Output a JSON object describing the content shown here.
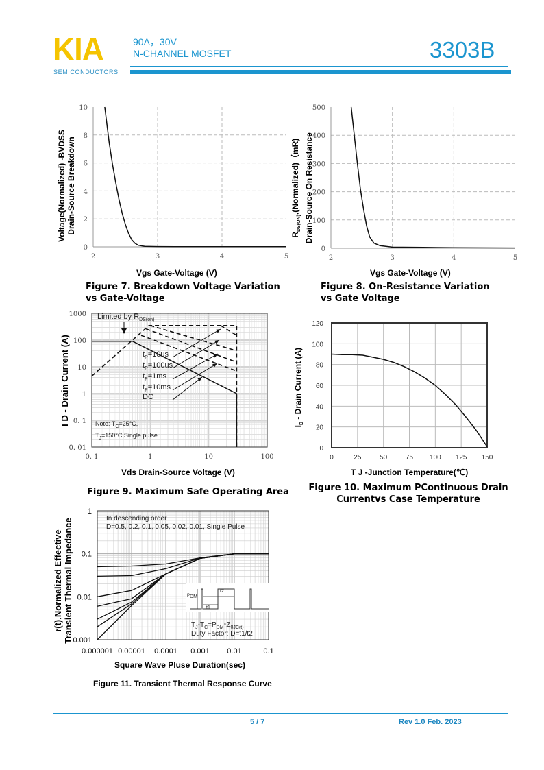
{
  "header": {
    "logo": "KIA",
    "logo_sub": "SEMICONDUCTORS",
    "rating": "90A，30V",
    "type": "N-CHANNEL MOSFET",
    "part_number": "3303B",
    "accent_color": "#1b95cf",
    "logo_color": "#f5c400"
  },
  "footer": {
    "page": "5 / 7",
    "revision": "Rev 1.0 Feb. 2023"
  },
  "chart_data": [
    {
      "type": "line",
      "caption": [
        "Figure 7.   Breakdown Voltage Variation",
        "vs Gate-Voltage"
      ],
      "xlabel": "Vgs Gate-Voltage (V)",
      "ylabel": [
        "Voltage(Normalized) -BVDSS",
        "Drain-Source Breakdown"
      ],
      "xscale": "linear",
      "yscale": "linear",
      "xlim": [
        2,
        5
      ],
      "ylim": [
        0,
        10
      ],
      "xticks": [
        2,
        3,
        4,
        5
      ],
      "yticks": [
        0,
        2,
        4,
        6,
        8,
        10
      ],
      "grid": "dashed",
      "series": [
        {
          "x": [
            2.18,
            2.25,
            2.3,
            2.35,
            2.4,
            2.45,
            2.5,
            2.55,
            2.6,
            2.65,
            2.7,
            2.8,
            3,
            3.5,
            4,
            5
          ],
          "y": [
            10,
            7.4,
            5.9,
            4.6,
            3.4,
            2.4,
            1.6,
            0.95,
            0.5,
            0.25,
            0.12,
            0.04,
            0.02,
            0.01,
            0.01,
            0.01
          ]
        }
      ]
    },
    {
      "type": "line",
      "caption": [
        "Figure 8. On-Resistance Variation",
        "vs Gate Voltage"
      ],
      "xlabel": "Vgs Gate-Voltage (V)",
      "ylabel": {
        "r": "R",
        "sub": "DS(ON)",
        "rest": ",(Normalized)（mR)",
        "line2": "Drain-Source On Resistance"
      },
      "xscale": "linear",
      "yscale": "linear",
      "xlim": [
        2,
        5
      ],
      "ylim": [
        0,
        500
      ],
      "xticks": [
        2,
        3,
        4,
        5
      ],
      "yticks": [
        0,
        100,
        200,
        300,
        400,
        500
      ],
      "grid": "dashed",
      "series": [
        {
          "x": [
            2.33,
            2.38,
            2.43,
            2.48,
            2.53,
            2.58,
            2.63,
            2.7,
            2.8,
            3,
            3.5,
            4,
            5
          ],
          "y": [
            500,
            400,
            300,
            210,
            140,
            80,
            40,
            18,
            9,
            4,
            3,
            2,
            1
          ]
        }
      ]
    },
    {
      "type": "line",
      "caption": [
        "Figure 9. Maximum Safe Operating Area"
      ],
      "xlabel": "Vds Drain-Source Voltage (V)",
      "ylabel": "I D - Drain Current (A)",
      "xscale": "log",
      "yscale": "log",
      "xlim": [
        0.1,
        100
      ],
      "ylim": [
        0.01,
        1000
      ],
      "xticks": [
        0.1,
        1,
        10,
        100
      ],
      "xticklabels": [
        "0. 1",
        "1",
        "10",
        "100"
      ],
      "yticks": [
        0.01,
        0.1,
        1,
        10,
        100,
        1000
      ],
      "yticklabels": [
        "0. 01",
        "0. 1",
        "1",
        "10",
        "100",
        "1000"
      ],
      "grid": "log",
      "limit_label": {
        "pre": "Limited by R",
        "sub": "DS(on)"
      },
      "series": [
        {
          "name": "Limited by RDS(on)",
          "style": "dashed",
          "x": [
            0.1,
            0.95,
            30,
            30
          ],
          "y": [
            4.5,
            350,
            350,
            0.01
          ]
        },
        {
          "name": "tP=10us",
          "style": "dashed",
          "label": {
            "t": "t",
            "sub": "P",
            "rest": "=10us"
          },
          "x": [
            16,
            30
          ],
          "y": [
            350,
            150
          ]
        },
        {
          "name": "tP=100us",
          "style": "dashed",
          "label": {
            "t": "t",
            "sub": "P",
            "rest": "=100us"
          },
          "x": [
            1,
            30
          ],
          "y": [
            350,
            40
          ]
        },
        {
          "name": "tP=1ms",
          "style": "dashed",
          "label": {
            "t": "t",
            "sub": "P",
            "rest": "=1ms"
          },
          "x": [
            0.85,
            30
          ],
          "y": [
            260,
            15
          ]
        },
        {
          "name": "tP=10ms",
          "style": "dashed",
          "label": {
            "t": "t",
            "sub": "P",
            "rest": "=10ms"
          },
          "x": [
            0.7,
            30
          ],
          "y": [
            150,
            7
          ]
        },
        {
          "name": "DC",
          "style": "solid",
          "label": {
            "t": "DC",
            "sub": "",
            "rest": ""
          },
          "x": [
            0.1,
            0.5,
            30,
            30
          ],
          "y": [
            90,
            90,
            1,
            0.01
          ]
        }
      ],
      "note": {
        "l1a": "Note: T",
        "l1s": "C",
        "l1b": "=25°C,",
        "l2a": "T",
        "l2s": "J",
        "l2b": "=150°C,Single pulse"
      }
    },
    {
      "type": "line",
      "caption": [
        "Figure 10. Maximum  PContinuous Drain",
        "Currentvs Case Temperature"
      ],
      "xlabel": "T J -Junction Temperature(℃)",
      "ylabel": {
        "r": "I",
        "sub": "D",
        "rest": " - Drain Current (A)"
      },
      "xscale": "linear",
      "yscale": "linear",
      "xlim": [
        0,
        150
      ],
      "ylim": [
        0,
        120
      ],
      "xticks": [
        0,
        25,
        50,
        75,
        100,
        125,
        150
      ],
      "yticks": [
        0,
        20,
        40,
        60,
        80,
        100,
        120
      ],
      "grid": "solid",
      "series": [
        {
          "x": [
            0,
            10,
            20,
            30,
            40,
            50,
            60,
            70,
            80,
            90,
            100,
            110,
            120,
            130,
            140,
            150
          ],
          "y": [
            90,
            89.5,
            89.5,
            89,
            87,
            85,
            82,
            78,
            73,
            67,
            60,
            51,
            41,
            29,
            16,
            1
          ]
        }
      ]
    },
    {
      "type": "line",
      "caption": [
        "Figure 11. Transient Thermal Response Curve"
      ],
      "xlabel": "Square Wave Pluse Duration(sec)",
      "ylabel": [
        "r(t),Normalized Effective",
        "Transient Thermal Impedance"
      ],
      "xscale": "log",
      "yscale": "log",
      "xlim": [
        1e-06,
        0.1
      ],
      "ylim": [
        0.001,
        1
      ],
      "xticks": [
        1e-06,
        1e-05,
        0.0001,
        0.001,
        0.01,
        0.1
      ],
      "xticklabels": [
        "0.000001",
        "0.00001",
        "0.0001",
        "0.001",
        "0.01",
        "0.1"
      ],
      "yticks": [
        0.001,
        0.01,
        0.1,
        1
      ],
      "yticklabels": [
        "0.001",
        "0.01",
        "0.1",
        "1"
      ],
      "grid": "log",
      "legend": [
        "In descending order",
        "D=0.5,  0.2,  0.1,  0.05,  0.02,  0.01,  Single Pulse"
      ],
      "formula": {
        "a": "T",
        "as": "J",
        "b": "-T",
        "bs": "C",
        "c": "=P",
        "cs": "DM",
        "d": "*Z",
        "ds": "θJC(t)"
      },
      "duty": "Duty Factor: D=t1/t2",
      "inset": {
        "pdm": "P",
        "pdm_sub": "DM",
        "t1": "t1",
        "t2": "t2"
      },
      "series": [
        {
          "name": "D=0.5",
          "x": [
            1e-06,
            1e-05,
            0.0001,
            0.001,
            0.01,
            0.1
          ],
          "y": [
            0.05,
            0.052,
            0.058,
            0.08,
            0.1,
            0.1
          ]
        },
        {
          "name": "D=0.2",
          "x": [
            1e-06,
            1e-05,
            0.0001,
            0.001,
            0.01,
            0.1
          ],
          "y": [
            0.03,
            0.031,
            0.045,
            0.08,
            0.1,
            0.1
          ]
        },
        {
          "name": "D=0.1",
          "x": [
            1e-06,
            1e-05,
            0.0001,
            0.001,
            0.01,
            0.1
          ],
          "y": [
            0.01,
            0.014,
            0.034,
            0.078,
            0.1,
            0.1
          ]
        },
        {
          "name": "D=0.05",
          "x": [
            1e-06,
            1e-05,
            0.0001,
            0.001,
            0.01,
            0.1
          ],
          "y": [
            0.006,
            0.009,
            0.034,
            0.078,
            0.1,
            0.1
          ]
        },
        {
          "name": "D=0.02",
          "x": [
            1e-06,
            1e-05,
            0.0001,
            0.001,
            0.01,
            0.1
          ],
          "y": [
            0.003,
            0.0075,
            0.034,
            0.078,
            0.1,
            0.1
          ]
        },
        {
          "name": "D=0.01",
          "x": [
            1e-06,
            1e-05,
            0.0001,
            0.001,
            0.01,
            0.1
          ],
          "y": [
            0.002,
            0.0068,
            0.034,
            0.078,
            0.1,
            0.1
          ]
        },
        {
          "name": "Single Pulse",
          "x": [
            1e-06,
            1e-05,
            0.0001,
            0.001,
            0.01,
            0.1
          ],
          "y": [
            0.001,
            0.0062,
            0.034,
            0.078,
            0.1,
            0.1
          ]
        }
      ]
    }
  ]
}
